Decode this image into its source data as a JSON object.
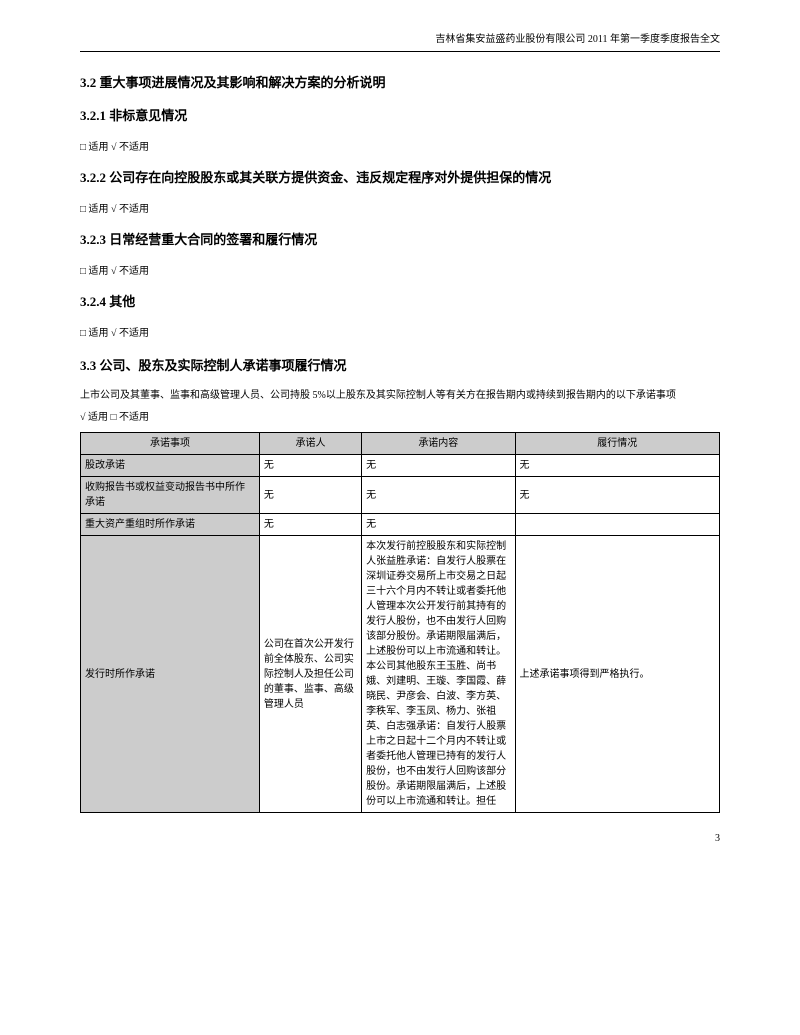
{
  "header": "吉林省集安益盛药业股份有限公司  2011 年第一季度季度报告全文",
  "section_3_2": "3.2  重大事项进展情况及其影响和解决方案的分析说明",
  "section_3_2_1": "3.2.1  非标意见情况",
  "checkbox_3_2_1": "□ 适用  √ 不适用",
  "section_3_2_2": "3.2.2  公司存在向控股股东或其关联方提供资金、违反规定程序对外提供担保的情况",
  "checkbox_3_2_2": "□ 适用  √ 不适用",
  "section_3_2_3": "3.2.3  日常经营重大合同的签署和履行情况",
  "checkbox_3_2_3": "□ 适用  √ 不适用",
  "section_3_2_4": "3.2.4  其他",
  "checkbox_3_2_4": "□ 适用  √ 不适用",
  "section_3_3": "3.3  公司、股东及实际控制人承诺事项履行情况",
  "body_3_3_intro": "上市公司及其董事、监事和高级管理人员、公司持股  5%以上股东及其实际控制人等有关方在报告期内或持续到报告期内的以下承诺事项",
  "checkbox_3_3": "√ 适用  □ 不适用",
  "table": {
    "headers": [
      "承诺事项",
      "承诺人",
      "承诺内容",
      "履行情况"
    ],
    "rows": [
      {
        "label": "股改承诺",
        "c2": "无",
        "c3": "无",
        "c4": "无"
      },
      {
        "label": "收购报告书或权益变动报告书中所作承诺",
        "c2": "无",
        "c3": "无",
        "c4": "无"
      },
      {
        "label": "重大资产重组时所作承诺",
        "c2": "无",
        "c3": "无",
        "c4": ""
      },
      {
        "label": "发行时所作承诺",
        "c2": "公司在首次公开发行前全体股东、公司实际控制人及担任公司的董事、监事、高级管理人员",
        "c3": "本次发行前控股股东和实际控制人张益胜承诺：自发行人股票在深圳证券交易所上市交易之日起三十六个月内不转让或者委托他人管理本次公开发行前其持有的发行人股份，也不由发行人回购该部分股份。承诺期限届满后，上述股份可以上市流通和转让。本公司其他股东王玉胜、尚书娥、刘建明、王璇、李国霞、薛晓民、尹彦会、白波、李方英、李秩军、李玉凤、杨力、张祖英、白志强承诺：自发行人股票上市之日起十二个月内不转让或者委托他人管理已持有的发行人股份，也不由发行人回购该部分股份。承诺期限届满后，上述股份可以上市流通和转让。担任",
        "c4": "上述承诺事项得到严格执行。"
      }
    ]
  },
  "page_number": "3"
}
